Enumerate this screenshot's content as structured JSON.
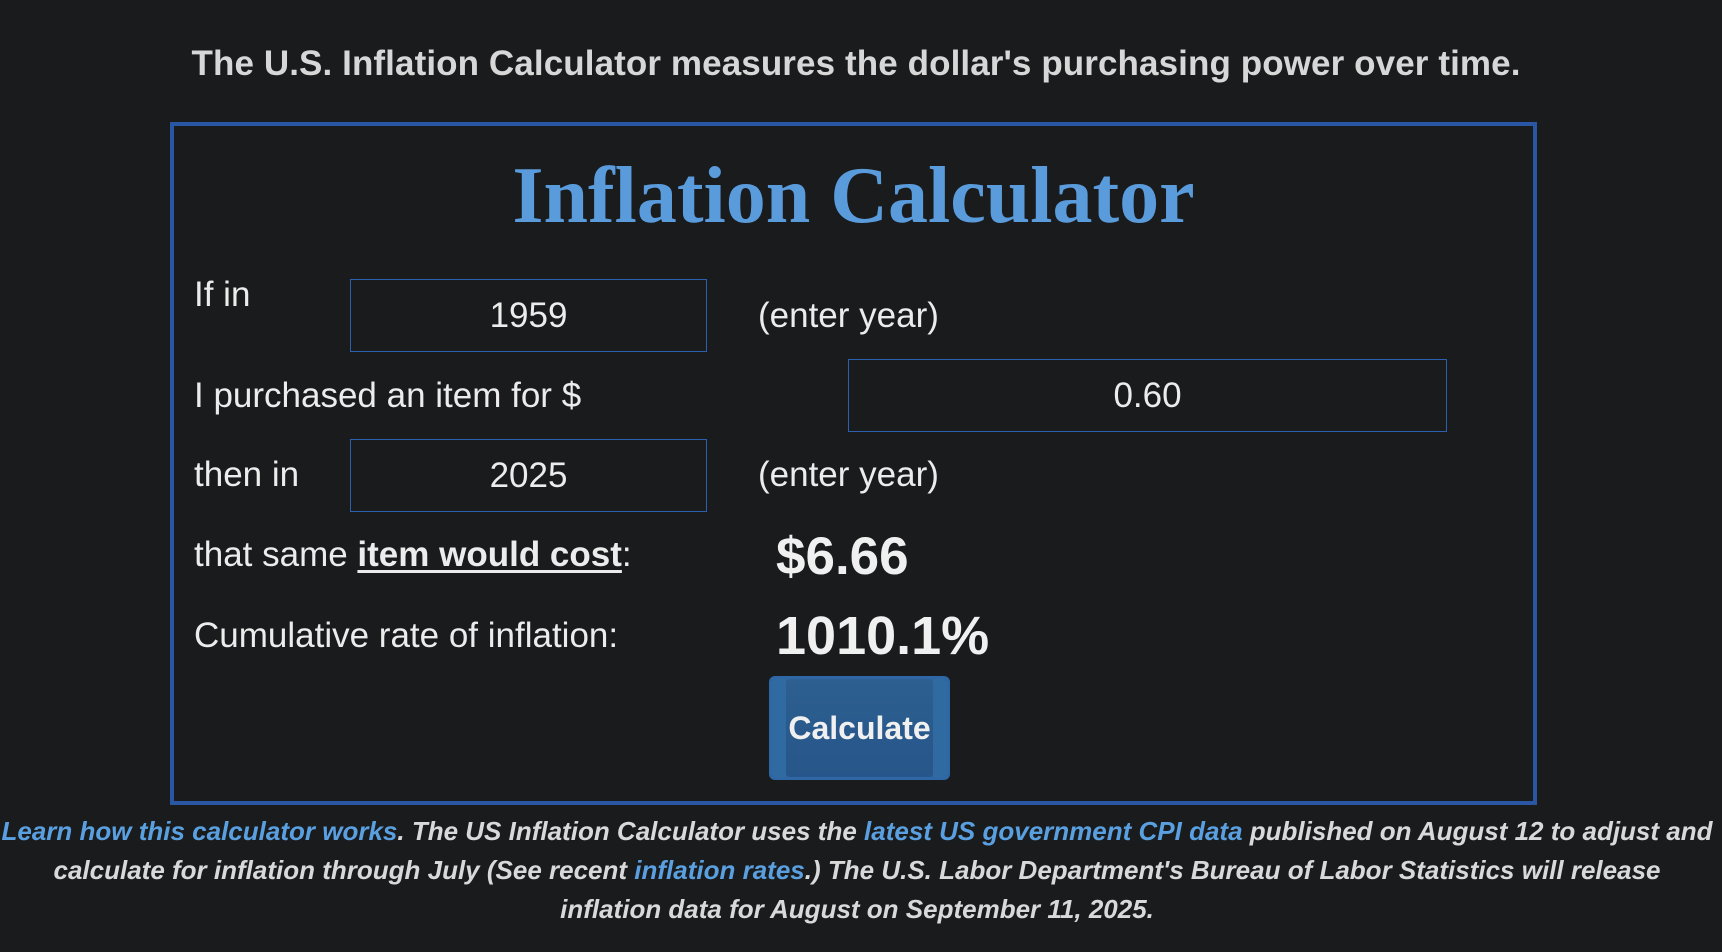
{
  "tagline": "The U.S. Inflation Calculator measures the dollar's purchasing power over time.",
  "calculator": {
    "title": "Inflation Calculator",
    "row_start": {
      "label": "If in",
      "value": "1959",
      "hint": "(enter year)"
    },
    "row_amount": {
      "label": "I purchased an item for $",
      "value": "0.60"
    },
    "row_end": {
      "label": "then in",
      "value": "2025",
      "hint": "(enter year)"
    },
    "row_cost": {
      "label_prefix": "that same ",
      "label_link": "item would cost",
      "label_suffix": ":",
      "value": "$6.66"
    },
    "row_rate": {
      "label": "Cumulative rate of inflation:",
      "value": "1010.1%"
    },
    "button_label": "Calculate"
  },
  "footer": {
    "link_how": "Learn how this calculator works",
    "text_1": ". The US Inflation Calculator uses the ",
    "link_cpi": "latest US government CPI data",
    "text_2": " published on August 12 to adjust and calculate for inflation through July (See recent ",
    "link_rates": "inflation rates",
    "text_3": ".) The U.S. Labor Department's Bureau of Labor Statistics will release inflation data for August on September 11, 2025."
  },
  "colors": {
    "background": "#191b1d",
    "border": "#2a57a3",
    "title": "#5a9bdc",
    "link": "#5aa0e0",
    "button": "#2d5f90"
  }
}
